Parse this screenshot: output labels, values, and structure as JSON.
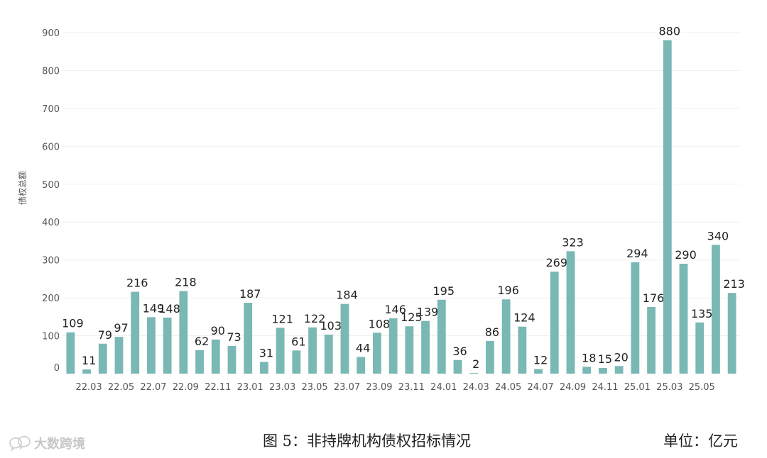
{
  "chart_data": {
    "type": "bar",
    "ylabel": "债权总额",
    "ylim": [
      0,
      900
    ],
    "yticks": [
      0,
      100,
      200,
      300,
      400,
      500,
      600,
      700,
      800,
      900
    ],
    "grid": true,
    "bar_color": "#79b8b4",
    "x_tick_labels": [
      "22.03",
      "22.05",
      "22.07",
      "22.09",
      "22.11",
      "23.01",
      "23.03",
      "23.05",
      "23.07",
      "23.09",
      "23.11",
      "24.01",
      "24.03",
      "24.05",
      "24.07",
      "24.09",
      "24.11",
      "25.01",
      "25.03",
      "25.05"
    ],
    "values": [
      109,
      11,
      79,
      97,
      216,
      149,
      148,
      218,
      62,
      90,
      73,
      187,
      31,
      121,
      61,
      122,
      103,
      184,
      44,
      108,
      146,
      125,
      139,
      195,
      36,
      2,
      86,
      196,
      124,
      12,
      269,
      323,
      18,
      15,
      20,
      294,
      176,
      880,
      290,
      135,
      340,
      213
    ]
  },
  "caption": "图 5：非持牌机构债权招标情况",
  "unit": "单位：亿元",
  "watermark": {
    "text": "大数跨境",
    "icon": "chat-bubble-logo-icon"
  }
}
